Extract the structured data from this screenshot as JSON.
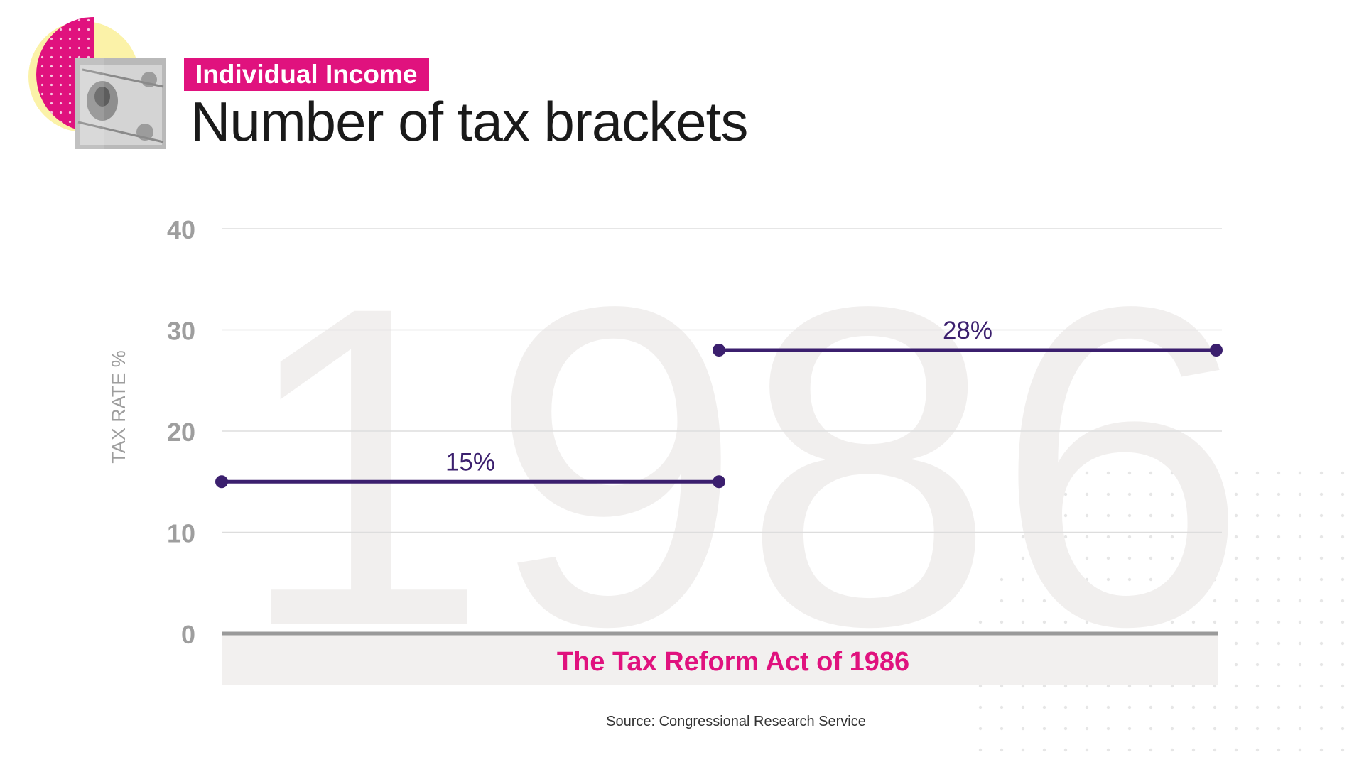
{
  "header": {
    "category": "Individual Income",
    "title": "Number of tax brackets"
  },
  "colors": {
    "accent": "#e0127e",
    "line": "#3b1f6e",
    "grid": "#dddddd",
    "tick": "#9e9e9e",
    "band": "#f2f0ef",
    "watermark": "#f1efee"
  },
  "icons": {
    "logo": "dollar-bill-collage-icon"
  },
  "chart_data": {
    "type": "line",
    "ylabel": "TAX RATE %",
    "ylim": [
      0,
      40
    ],
    "yticks": [
      0,
      10,
      20,
      30,
      40
    ],
    "grid": true,
    "band_label": "The Tax Reform Act of 1986",
    "watermark": "1986",
    "series": [
      {
        "label": "15%",
        "value": 15,
        "x": [
          0,
          1
        ]
      },
      {
        "label": "28%",
        "value": 28,
        "x": [
          1,
          2
        ]
      }
    ],
    "xlim": [
      0,
      2
    ]
  },
  "footer": {
    "source": "Source: Congressional Research Service"
  }
}
